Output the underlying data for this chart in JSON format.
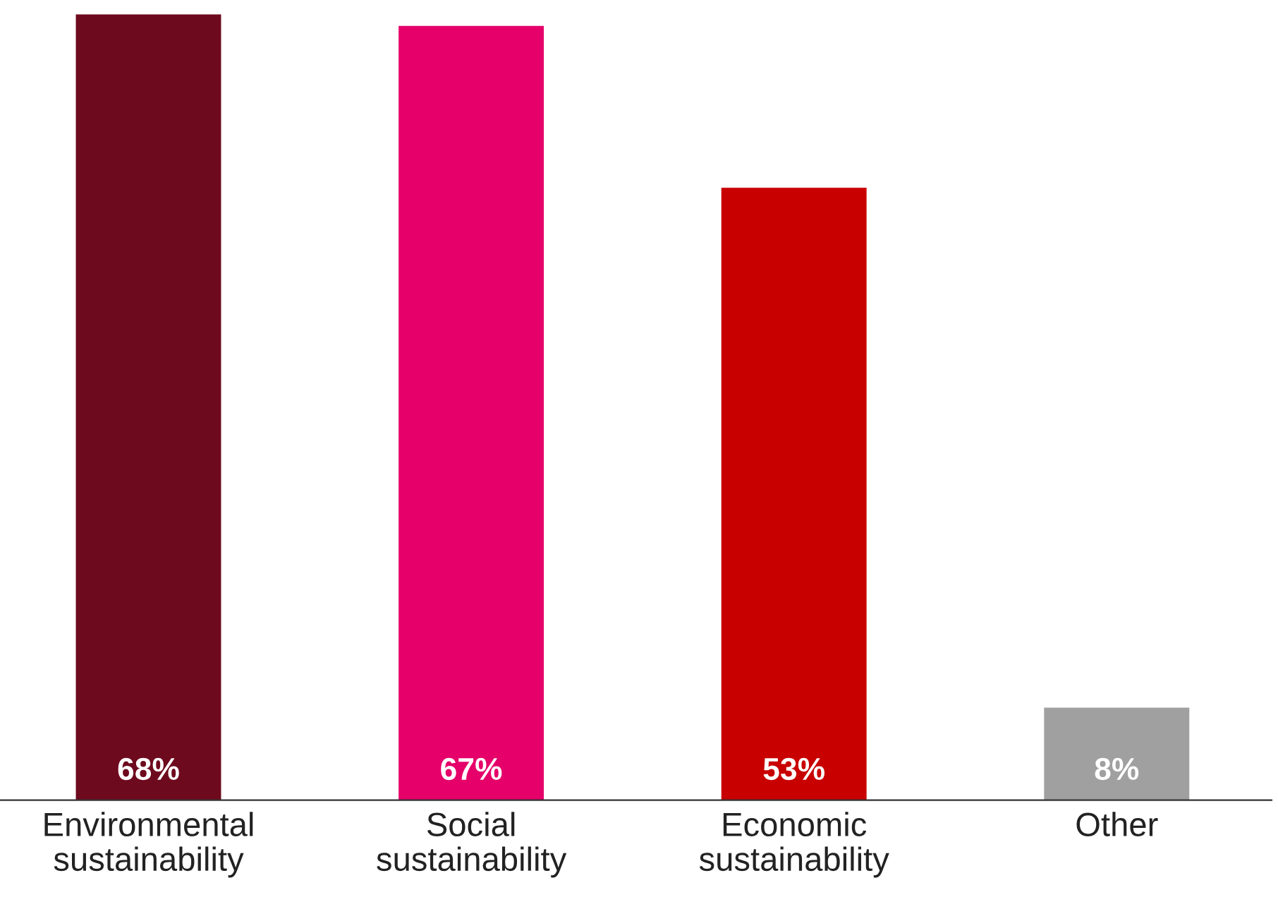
{
  "chart_data": {
    "type": "bar",
    "categories": [
      "Environmental sustainability",
      "Social sustainability",
      "Economic sustainability",
      "Other"
    ],
    "values": [
      68,
      67,
      53,
      8
    ],
    "colors": [
      "#6e0a1e",
      "#e5006a",
      "#c80000",
      "#a0a0a0"
    ],
    "value_labels": [
      "68%",
      "67%",
      "53%",
      "8%"
    ],
    "grid": false,
    "legend": false
  }
}
